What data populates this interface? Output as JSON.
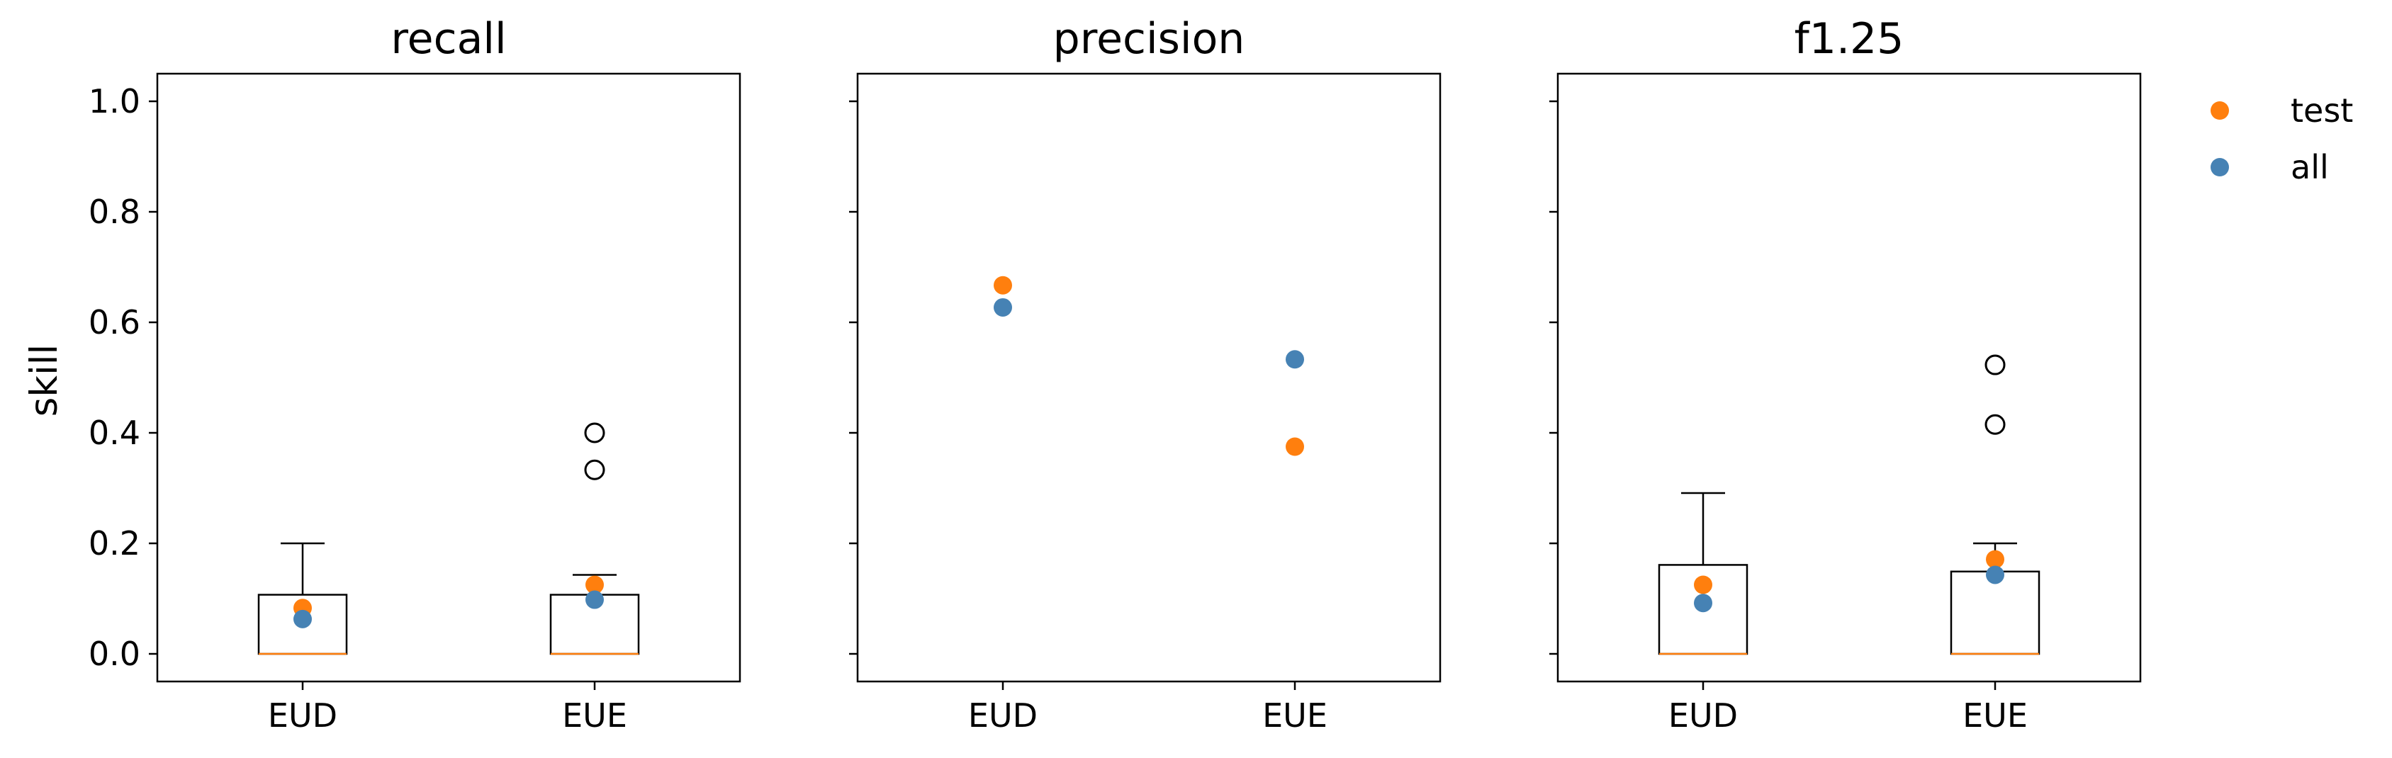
{
  "figure": {
    "ylabel": "skill"
  },
  "legend": {
    "placement": "right outside",
    "entries": [
      {
        "label": "test",
        "color": "#ff7f0e"
      },
      {
        "label": "all",
        "color": "#4682b4"
      }
    ]
  },
  "colors": {
    "test": "#ff7f0e",
    "all": "#4682b4",
    "median": "#ff7f0e",
    "box": "#000000"
  },
  "chart_data": [
    {
      "type": "box+scatter",
      "title": "recall",
      "categories": [
        "EUD",
        "EUE"
      ],
      "ylim": [
        -0.05,
        1.05
      ],
      "yticks": [
        "0.0",
        "0.2",
        "0.4",
        "0.6",
        "0.8",
        "1.0"
      ],
      "boxes": [
        {
          "category": "EUD",
          "q1": 0.0,
          "median": 0.0,
          "q3": 0.107,
          "whisker_low": 0.0,
          "whisker_high": 0.2,
          "fliers": []
        },
        {
          "category": "EUE",
          "q1": 0.0,
          "median": 0.0,
          "q3": 0.107,
          "whisker_low": 0.0,
          "whisker_high": 0.143,
          "fliers": [
            0.333,
            0.4
          ]
        }
      ],
      "series": [
        {
          "name": "test",
          "values": [
            0.083,
            0.125
          ]
        },
        {
          "name": "all",
          "values": [
            0.063,
            0.098
          ]
        }
      ]
    },
    {
      "type": "scatter",
      "title": "precision",
      "categories": [
        "EUD",
        "EUE"
      ],
      "ylim": [
        -0.05,
        1.05
      ],
      "boxes": [],
      "series": [
        {
          "name": "test",
          "values": [
            0.667,
            0.375
          ]
        },
        {
          "name": "all",
          "values": [
            0.627,
            0.533
          ]
        }
      ]
    },
    {
      "type": "box+scatter",
      "title": "f1.25",
      "categories": [
        "EUD",
        "EUE"
      ],
      "ylim": [
        -0.05,
        1.05
      ],
      "boxes": [
        {
          "category": "EUD",
          "q1": 0.0,
          "median": 0.0,
          "q3": 0.161,
          "whisker_low": 0.0,
          "whisker_high": 0.291,
          "fliers": []
        },
        {
          "category": "EUE",
          "q1": 0.0,
          "median": 0.0,
          "q3": 0.149,
          "whisker_low": 0.0,
          "whisker_high": 0.2,
          "fliers": [
            0.415,
            0.523
          ]
        }
      ],
      "series": [
        {
          "name": "test",
          "values": [
            0.125,
            0.171
          ]
        },
        {
          "name": "all",
          "values": [
            0.092,
            0.143
          ]
        }
      ]
    }
  ]
}
